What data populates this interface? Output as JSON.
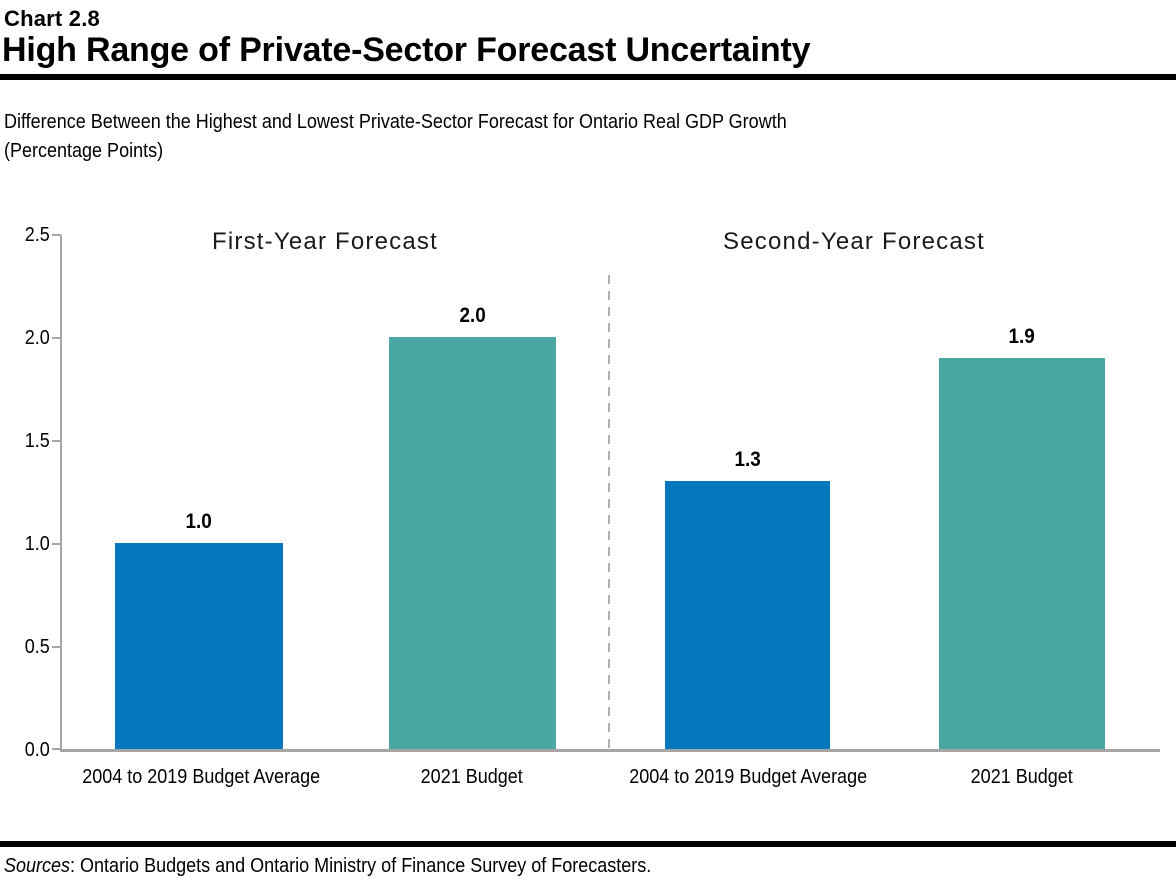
{
  "header": {
    "chart_number": "Chart 2.8",
    "title": "High Range of Private-Sector Forecast Uncertainty",
    "subtitle_line1": "Difference Between the Highest and Lowest Private-Sector Forecast for Ontario Real GDP Growth",
    "subtitle_line2": "(Percentage Points)"
  },
  "colors": {
    "bar_blue": "#0778BE",
    "bar_teal": "#4AA7A3",
    "axis_gray": "#A6A6A6",
    "divider_gray": "#B0B0B0"
  },
  "chart_data": {
    "type": "bar",
    "title": "High Range of Private-Sector Forecast Uncertainty",
    "ylabel": "Percentage Points",
    "ylim": [
      0,
      2.5
    ],
    "grid": false,
    "y_ticks": [
      "2.5",
      "2.0",
      "1.5",
      "1.0",
      "0.5",
      "0.0"
    ],
    "groups": [
      {
        "title": "First-Year Forecast",
        "categories": [
          "2004 to 2019 Budget Average",
          "2021 Budget"
        ],
        "values": [
          1.0,
          2.0
        ],
        "value_labels": [
          "1.0",
          "2.0"
        ]
      },
      {
        "title": "Second-Year Forecast",
        "categories": [
          "2004 to 2019 Budget Average",
          "2021 Budget"
        ],
        "values": [
          1.3,
          1.9
        ],
        "value_labels": [
          "1.3",
          "1.9"
        ]
      }
    ],
    "series_colors": {
      "2004 to 2019 Budget Average": "#0778BE",
      "2021 Budget": "#4AA7A3"
    }
  },
  "footer": {
    "sources_label": "Sources",
    "sources_rest": ": Ontario Budgets and Ontario Ministry of Finance Survey of Forecasters."
  }
}
